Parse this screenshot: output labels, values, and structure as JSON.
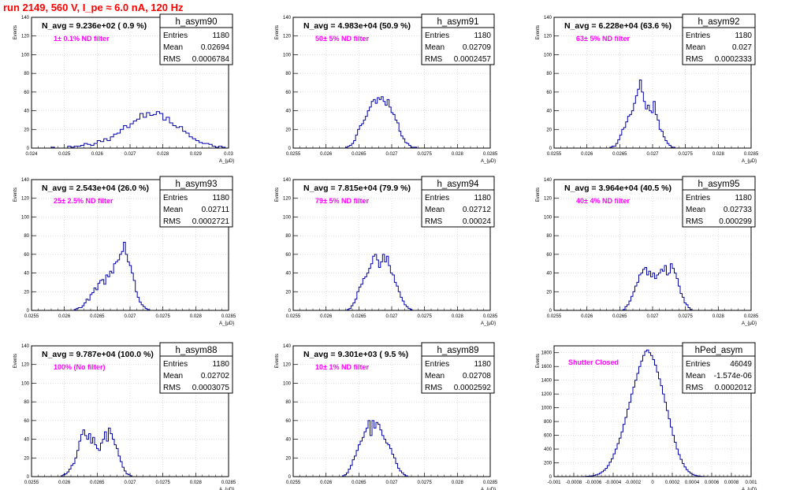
{
  "run_title": "run 2149,   560 V, I_pe ≈ 6.0 nA, 120 Hz",
  "colors": {
    "title": "#ff0000",
    "annotation": "#ff00ff",
    "histogram": "#0000aa",
    "frame": "#000000",
    "grid": "#cccccc"
  },
  "stats_labels": {
    "entries": "Entries",
    "mean": "Mean",
    "rms": "RMS"
  },
  "y_axis_label": "Events",
  "x_axis_label": "A_{μD}",
  "chart_data": [
    {
      "type": "histogram",
      "title": "h_asym90",
      "n_avg": "N_avg = 9.236e+02 ( 0.9 %)",
      "filter": "1± 0.1% ND filter",
      "entries": "1180",
      "mean": "0.02694",
      "rms": "0.0006784",
      "xlim": [
        0.024,
        0.03
      ],
      "ylim": [
        0,
        140
      ],
      "xticks": [
        "0.024",
        "0.025",
        "0.026",
        "0.027",
        "0.028",
        "0.029",
        "0.03"
      ],
      "xtick_values": [
        0.024,
        0.025,
        0.026,
        0.027,
        0.028,
        0.029,
        0.03
      ],
      "yticks": [
        "0",
        "20",
        "40",
        "60",
        "80",
        "100",
        "120",
        "140"
      ],
      "ytick_values": [
        0,
        20,
        40,
        60,
        80,
        100,
        120,
        140
      ],
      "bin_start": 0.0246,
      "bin_width": 0.0001,
      "values": [
        1,
        0,
        0,
        0,
        0,
        2,
        1,
        2,
        2,
        3,
        5,
        4,
        3,
        5,
        8,
        7,
        10,
        8,
        12,
        15,
        16,
        20,
        24,
        22,
        26,
        29,
        31,
        37,
        33,
        38,
        35,
        36,
        39,
        37,
        30,
        33,
        27,
        24,
        22,
        23,
        18,
        16,
        12,
        10,
        8,
        6,
        5,
        5,
        4,
        2,
        1,
        2,
        1,
        0
      ]
    },
    {
      "type": "histogram",
      "title": "h_asym91",
      "n_avg": "N_avg = 4.983e+04 (50.9 %)",
      "filter": "50± 5% ND filter",
      "entries": "1180",
      "mean": "0.02709",
      "rms": "0.0002457",
      "xlim": [
        0.0255,
        0.0285
      ],
      "ylim": [
        0,
        140
      ],
      "xticks": [
        "0.0255",
        "0.026",
        "0.0265",
        "0.027",
        "0.0275",
        "0.028",
        "0.0285"
      ],
      "xtick_values": [
        0.0255,
        0.026,
        0.0265,
        0.027,
        0.0275,
        0.028,
        0.0285
      ],
      "yticks": [
        "0",
        "20",
        "40",
        "60",
        "80",
        "100",
        "120",
        "140"
      ],
      "ytick_values": [
        0,
        20,
        40,
        60,
        80,
        100,
        120,
        140
      ],
      "bin_start": 0.0263,
      "bin_width": 3e-05,
      "values": [
        1,
        2,
        3,
        5,
        8,
        14,
        20,
        24,
        26,
        30,
        34,
        40,
        44,
        50,
        52,
        48,
        54,
        52,
        55,
        50,
        46,
        52,
        44,
        38,
        36,
        30,
        27,
        18,
        13,
        10,
        6,
        5,
        3,
        1,
        1,
        1
      ]
    },
    {
      "type": "histogram",
      "title": "h_asym92",
      "n_avg": "N_avg = 6.228e+04 (63.6 %)",
      "filter": "63± 5% ND filter",
      "entries": "1180",
      "mean": "0.027",
      "rms": "0.0002333",
      "xlim": [
        0.0255,
        0.0285
      ],
      "ylim": [
        0,
        140
      ],
      "xticks": [
        "0.0255",
        "0.026",
        "0.0265",
        "0.027",
        "0.0275",
        "0.028",
        "0.0285"
      ],
      "xtick_values": [
        0.0255,
        0.026,
        0.0265,
        0.027,
        0.0275,
        0.028,
        0.0285
      ],
      "yticks": [
        "0",
        "20",
        "40",
        "60",
        "80",
        "100",
        "120",
        "140"
      ],
      "ytick_values": [
        0,
        20,
        40,
        60,
        80,
        100,
        120,
        140
      ],
      "bin_start": 0.02635,
      "bin_width": 3e-05,
      "values": [
        1,
        2,
        2,
        5,
        9,
        14,
        20,
        22,
        28,
        34,
        36,
        40,
        48,
        56,
        63,
        73,
        60,
        50,
        42,
        46,
        40,
        38,
        50,
        36,
        30,
        20,
        18,
        12,
        8,
        5,
        3,
        1,
        1
      ]
    },
    {
      "type": "histogram",
      "title": "h_asym93",
      "n_avg": "N_avg = 2.543e+04 (26.0 %)",
      "filter": "25± 2.5% ND filter",
      "entries": "1180",
      "mean": "0.02711",
      "rms": "0.0002721",
      "xlim": [
        0.0255,
        0.0285
      ],
      "ylim": [
        0,
        140
      ],
      "xticks": [
        "0.0255",
        "0.026",
        "0.0265",
        "0.027",
        "0.0275",
        "0.028",
        "0.0285"
      ],
      "xtick_values": [
        0.0255,
        0.026,
        0.0265,
        0.027,
        0.0275,
        0.028,
        0.0285
      ],
      "yticks": [
        "0",
        "20",
        "40",
        "60",
        "80",
        "100",
        "120",
        "140"
      ],
      "ytick_values": [
        0,
        20,
        40,
        60,
        80,
        100,
        120,
        140
      ],
      "bin_start": 0.02615,
      "bin_width": 3e-05,
      "values": [
        1,
        2,
        3,
        3,
        5,
        8,
        12,
        11,
        17,
        19,
        24,
        22,
        29,
        32,
        33,
        28,
        38,
        36,
        42,
        40,
        50,
        52,
        54,
        60,
        63,
        73,
        60,
        52,
        48,
        40,
        32,
        20,
        14,
        9,
        6,
        4,
        2,
        1
      ]
    },
    {
      "type": "histogram",
      "title": "h_asym94",
      "n_avg": "N_avg = 7.815e+04 (79.9 %)",
      "filter": "79± 5% ND filter",
      "entries": "1180",
      "mean": "0.02712",
      "rms": "0.00024",
      "xlim": [
        0.0255,
        0.0285
      ],
      "ylim": [
        0,
        140
      ],
      "xticks": [
        "0.0255",
        "0.026",
        "0.0265",
        "0.027",
        "0.0275",
        "0.028",
        "0.0285"
      ],
      "xtick_values": [
        0.0255,
        0.026,
        0.0265,
        0.027,
        0.0275,
        0.028,
        0.0285
      ],
      "yticks": [
        "0",
        "20",
        "40",
        "60",
        "80",
        "100",
        "120",
        "140"
      ],
      "ytick_values": [
        0,
        20,
        40,
        60,
        80,
        100,
        120,
        140
      ],
      "bin_start": 0.02632,
      "bin_width": 3e-05,
      "values": [
        1,
        2,
        5,
        8,
        12,
        20,
        25,
        28,
        34,
        36,
        40,
        45,
        50,
        58,
        60,
        54,
        46,
        52,
        60,
        52,
        58,
        48,
        40,
        38,
        30,
        26,
        20,
        14,
        10,
        6,
        4,
        2,
        1
      ]
    },
    {
      "type": "histogram",
      "title": "h_asym95",
      "n_avg": "N_avg = 3.964e+04 (40.5 %)",
      "filter": "40± 4% ND filter",
      "entries": "1180",
      "mean": "0.02733",
      "rms": "0.000299",
      "xlim": [
        0.0255,
        0.0285
      ],
      "ylim": [
        0,
        140
      ],
      "xticks": [
        "0.0255",
        "0.026",
        "0.0265",
        "0.027",
        "0.0275",
        "0.028",
        "0.0285"
      ],
      "xtick_values": [
        0.0255,
        0.026,
        0.0265,
        0.027,
        0.0275,
        0.028,
        0.0285
      ],
      "yticks": [
        "0",
        "20",
        "40",
        "60",
        "80",
        "100",
        "120",
        "140"
      ],
      "ytick_values": [
        0,
        20,
        40,
        60,
        80,
        100,
        120,
        140
      ],
      "bin_start": 0.02655,
      "bin_width": 3e-05,
      "values": [
        1,
        4,
        6,
        10,
        15,
        20,
        26,
        30,
        38,
        40,
        44,
        46,
        38,
        42,
        36,
        40,
        34,
        38,
        40,
        44,
        42,
        48,
        38,
        40,
        50,
        45,
        40,
        34,
        26,
        18,
        14,
        8,
        6,
        3,
        1
      ]
    },
    {
      "type": "histogram",
      "title": "h_asym88",
      "n_avg": "N_avg = 9.787e+04 (100.0 %)",
      "filter": "100% (No filter)",
      "entries": "1180",
      "mean": "0.02702",
      "rms": "0.0003075",
      "xlim": [
        0.0255,
        0.0285
      ],
      "ylim": [
        0,
        140
      ],
      "xticks": [
        "0.0255",
        "0.026",
        "0.0265",
        "0.027",
        "0.0275",
        "0.028",
        "0.0285"
      ],
      "xtick_values": [
        0.0255,
        0.026,
        0.0265,
        0.027,
        0.0275,
        0.028,
        0.0285
      ],
      "yticks": [
        "0",
        "20",
        "40",
        "60",
        "80",
        "100",
        "120",
        "140"
      ],
      "ytick_values": [
        0,
        20,
        40,
        60,
        80,
        100,
        120,
        140
      ],
      "bin_start": 0.02595,
      "bin_width": 3e-05,
      "values": [
        1,
        2,
        3,
        5,
        8,
        12,
        14,
        20,
        28,
        38,
        45,
        50,
        44,
        40,
        46,
        36,
        42,
        34,
        30,
        28,
        36,
        40,
        48,
        38,
        52,
        46,
        40,
        34,
        30,
        22,
        16,
        10,
        6,
        3,
        2,
        1
      ]
    },
    {
      "type": "histogram",
      "title": "h_asym89",
      "n_avg": "N_avg = 9.301e+03 ( 9.5 %)",
      "filter": "10± 1% ND filter",
      "entries": "1180",
      "mean": "0.02708",
      "rms": "0.0002592",
      "xlim": [
        0.0255,
        0.0285
      ],
      "ylim": [
        0,
        140
      ],
      "xticks": [
        "0.0255",
        "0.026",
        "0.0265",
        "0.027",
        "0.0275",
        "0.028",
        "0.0285"
      ],
      "xtick_values": [
        0.0255,
        0.026,
        0.0265,
        0.027,
        0.0275,
        0.028,
        0.0285
      ],
      "yticks": [
        "0",
        "20",
        "40",
        "60",
        "80",
        "100",
        "120",
        "140"
      ],
      "ytick_values": [
        0,
        20,
        40,
        60,
        80,
        100,
        120,
        140
      ],
      "bin_start": 0.02625,
      "bin_width": 3e-05,
      "values": [
        1,
        2,
        4,
        8,
        12,
        18,
        22,
        28,
        34,
        38,
        42,
        48,
        52,
        60,
        44,
        60,
        52,
        58,
        56,
        50,
        44,
        40,
        36,
        34,
        30,
        24,
        20,
        14,
        9,
        6,
        4,
        2,
        1
      ]
    },
    {
      "type": "histogram",
      "title": "hPed_asym",
      "n_avg": "",
      "filter": "Shutter Closed",
      "entries": "46049",
      "mean": "-1.574e-06",
      "rms": "0.0002012",
      "xlim": [
        -0.001,
        0.001
      ],
      "ylim": [
        0,
        1900
      ],
      "xticks": [
        "-0.001",
        "-0.0008",
        "-0.0006",
        "-0.0004",
        "-0.0002",
        "0",
        "0.0002",
        "0.0004",
        "0.0006",
        "0.0008",
        "0.001"
      ],
      "xtick_values": [
        -0.001,
        -0.0008,
        -0.0006,
        -0.0004,
        -0.0002,
        0,
        0.0002,
        0.0004,
        0.0006,
        0.0008,
        0.001
      ],
      "yticks": [
        "0",
        "200",
        "400",
        "600",
        "800",
        "1000",
        "1200",
        "1400",
        "1600",
        "1800"
      ],
      "ytick_values": [
        0,
        200,
        400,
        600,
        800,
        1000,
        1200,
        1400,
        1600,
        1800
      ],
      "bin_start": -0.00072,
      "bin_width": 2e-05,
      "values": [
        1,
        2,
        4,
        6,
        9,
        12,
        18,
        26,
        36,
        50,
        70,
        92,
        120,
        160,
        210,
        260,
        330,
        400,
        480,
        560,
        650,
        760,
        860,
        980,
        1080,
        1200,
        1300,
        1400,
        1500,
        1600,
        1680,
        1760,
        1820,
        1840,
        1800,
        1760,
        1700,
        1620,
        1520,
        1420,
        1320,
        1200,
        1080,
        960,
        840,
        720,
        600,
        500,
        400,
        320,
        250,
        190,
        140,
        100,
        70,
        48,
        32,
        20,
        13,
        8,
        5,
        3,
        2,
        1
      ]
    }
  ]
}
